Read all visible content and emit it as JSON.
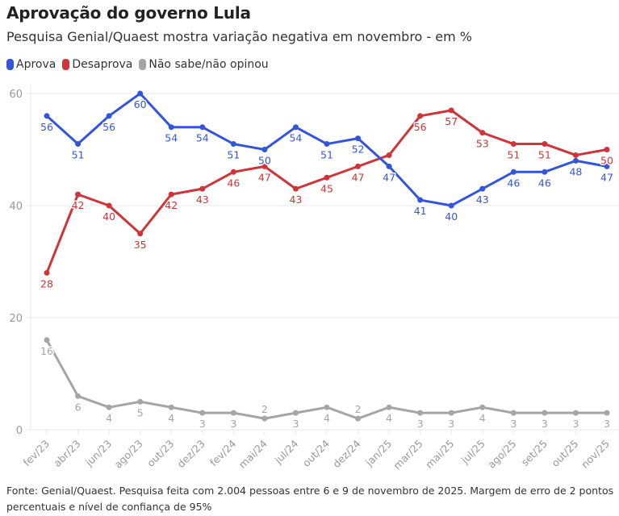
{
  "header": {
    "title": "Aprovação do governo Lula",
    "subtitle": "Pesquisa Genial/Quaest mostra variação negativa em novembro - em %"
  },
  "legend": [
    {
      "label": "Aprova",
      "color": "#3355dd"
    },
    {
      "label": "Desaprova",
      "color": "#d03438"
    },
    {
      "label": "Não sabe/não opinou",
      "color": "#a5a5a8"
    }
  ],
  "footer": {
    "text": "Fonte: Genial/Quaest. Pesquisa feita com 2.004 pessoas entre 6 e 9 de novembro de 2025. Margem de erro de 2 pontos percentuais e nível de confiança de 95%"
  },
  "chart_data": {
    "type": "line",
    "title": "Aprovação do governo Lula",
    "subtitle": "Pesquisa Genial/Quaest mostra variação negativa em novembro - em %",
    "xlabel": "",
    "ylabel": "",
    "ylim": [
      0,
      60
    ],
    "yticks": [
      0,
      20,
      40,
      60
    ],
    "grid": true,
    "legend_position": "top-left",
    "categories": [
      "fev/23",
      "abr/23",
      "jun/23",
      "ago/23",
      "out/23",
      "dez/23",
      "fev/24",
      "mai/24",
      "jul/24",
      "out/24",
      "dez/24",
      "jan/25",
      "mar/25",
      "mai/25",
      "jul/25",
      "ago/25",
      "set/25",
      "out/25",
      "nov/25"
    ],
    "series": [
      {
        "name": "Aprova",
        "color": "#3355dd",
        "values": [
          56,
          51,
          56,
          60,
          54,
          54,
          51,
          50,
          54,
          51,
          52,
          47,
          41,
          40,
          43,
          46,
          46,
          48,
          47
        ],
        "labels_shown": [
          true,
          true,
          true,
          true,
          true,
          true,
          true,
          true,
          true,
          true,
          true,
          true,
          true,
          true,
          true,
          true,
          true,
          true,
          true
        ],
        "label_position": [
          "below",
          "below",
          "below",
          "below",
          "below",
          "below",
          "below",
          "below",
          "below",
          "below",
          "below",
          "below",
          "below",
          "below",
          "below",
          "below",
          "below",
          "below",
          "below"
        ]
      },
      {
        "name": "Desaprova",
        "color": "#d03438",
        "values": [
          28,
          42,
          40,
          35,
          42,
          43,
          46,
          47,
          43,
          45,
          47,
          49,
          56,
          57,
          53,
          51,
          51,
          49,
          50
        ],
        "labels_shown": [
          true,
          true,
          true,
          true,
          true,
          true,
          true,
          true,
          true,
          true,
          true,
          false,
          true,
          true,
          true,
          true,
          true,
          false,
          true
        ],
        "label_position": [
          "below",
          "below",
          "below",
          "below",
          "below",
          "below",
          "below",
          "below",
          "below",
          "below",
          "below",
          "below",
          "below",
          "below",
          "below",
          "below",
          "below",
          "below",
          "below"
        ]
      },
      {
        "name": "Não sabe/não opinou",
        "color": "#a5a5a8",
        "values": [
          16,
          6,
          4,
          5,
          4,
          3,
          3,
          2,
          3,
          4,
          2,
          4,
          3,
          3,
          4,
          3,
          3,
          3,
          3
        ],
        "labels_shown": [
          true,
          true,
          true,
          true,
          true,
          true,
          true,
          true,
          true,
          true,
          true,
          true,
          true,
          true,
          true,
          true,
          true,
          true,
          true
        ],
        "label_position": [
          "below",
          "below",
          "below",
          "below",
          "below",
          "below",
          "below",
          "above",
          "below",
          "below",
          "above",
          "below",
          "below",
          "below",
          "below",
          "below",
          "below",
          "below",
          "below"
        ]
      }
    ]
  }
}
